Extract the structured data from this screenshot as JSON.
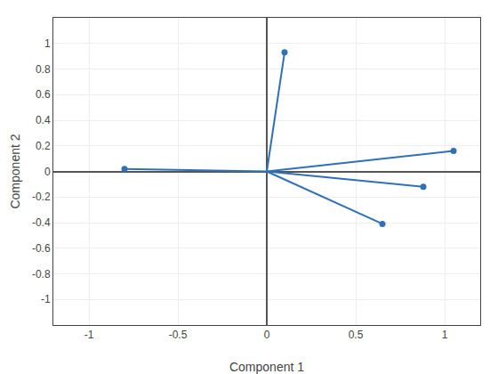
{
  "chart_data": {
    "type": "vector",
    "xlabel": "Component 1",
    "ylabel": "Component 2",
    "x": [
      0.1,
      -0.8,
      0.65,
      0.88,
      1.05
    ],
    "values": [
      0.93,
      0.02,
      -0.41,
      -0.12,
      0.16
    ],
    "xlim": [
      -1.2,
      1.2
    ],
    "ylim": [
      -1.2,
      1.2
    ],
    "xticks": [
      -1.0,
      -0.5,
      0.0,
      0.5,
      1.0
    ],
    "yticks": [
      -1.0,
      -0.8,
      -0.6,
      -0.4,
      -0.2,
      0.0,
      0.2,
      0.4,
      0.6,
      0.8,
      1.0
    ],
    "color": "#3070B8",
    "marker": "circle",
    "grid": true
  }
}
